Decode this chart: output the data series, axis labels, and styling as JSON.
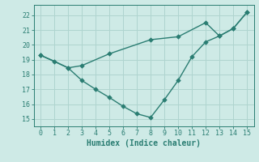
{
  "xlabel": "Humidex (Indice chaleur)",
  "background_color": "#ceeae6",
  "grid_color": "#afd4cf",
  "line_color": "#2a7d72",
  "xlim": [
    -0.5,
    15.5
  ],
  "ylim": [
    14.5,
    22.7
  ],
  "xticks": [
    0,
    1,
    2,
    3,
    4,
    5,
    6,
    7,
    8,
    9,
    10,
    11,
    12,
    13,
    14,
    15
  ],
  "yticks": [
    15,
    16,
    17,
    18,
    19,
    20,
    21,
    22
  ],
  "line1_x": [
    0,
    1,
    2,
    3,
    4,
    5,
    6,
    7,
    8,
    9,
    10,
    11,
    12,
    13,
    14,
    15
  ],
  "line1_y": [
    19.3,
    18.9,
    18.45,
    17.6,
    17.0,
    16.45,
    15.85,
    15.35,
    15.1,
    16.3,
    17.6,
    19.2,
    20.2,
    20.6,
    21.1,
    22.2
  ],
  "line2_x": [
    0,
    2,
    3,
    5,
    8,
    10,
    12,
    13,
    14,
    15
  ],
  "line2_y": [
    19.3,
    18.45,
    18.6,
    19.4,
    20.35,
    20.55,
    21.5,
    20.6,
    21.1,
    22.2
  ]
}
